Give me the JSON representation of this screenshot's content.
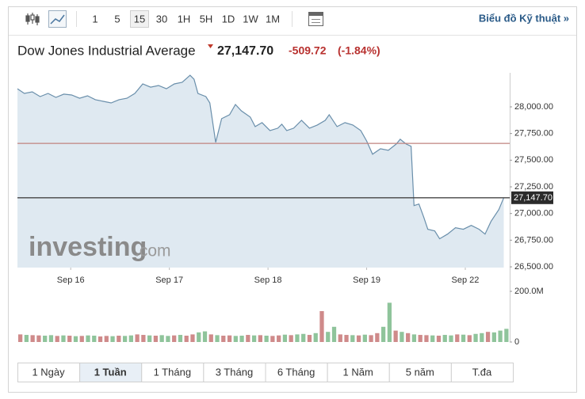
{
  "toolbar": {
    "intervals": [
      "1",
      "5",
      "15",
      "30",
      "1H",
      "5H",
      "1D",
      "1W",
      "1M"
    ],
    "selected": 2,
    "link": "Biểu đồ Kỹ thuật »"
  },
  "header": {
    "name": "Dow Jones Industrial Average",
    "price": "27,147.70",
    "change": "-509.72",
    "change_pct": "(-1.84%)"
  },
  "watermark": {
    "brand": "investing",
    "suffix": ".com"
  },
  "ranges": {
    "labels": [
      "1 Ngày",
      "1 Tuần",
      "1 Tháng",
      "3 Tháng",
      "6 Tháng",
      "1 Năm",
      "5 năm",
      "T.đa"
    ],
    "selected": 1
  },
  "chart_data": {
    "type": "line",
    "color": "#6a8fab",
    "area_color": "#dfe9f1",
    "x": [
      -0.54,
      -0.47,
      -0.39,
      -0.31,
      -0.23,
      -0.15,
      -0.07,
      0.01,
      0.09,
      0.17,
      0.25,
      0.33,
      0.41,
      0.49,
      0.57,
      0.65,
      0.73,
      0.81,
      0.89,
      0.97,
      1.05,
      1.13,
      1.21,
      1.25,
      1.29,
      1.37,
      1.41,
      1.47,
      1.53,
      1.61,
      1.67,
      1.73,
      1.82,
      1.87,
      1.94,
      2.02,
      2.1,
      2.14,
      2.19,
      2.26,
      2.34,
      2.42,
      2.5,
      2.58,
      2.62,
      2.7,
      2.78,
      2.86,
      2.94,
      3.0,
      3.06,
      3.14,
      3.22,
      3.3,
      3.34,
      3.4,
      3.45,
      3.48,
      3.53,
      3.58,
      3.62,
      3.69,
      3.74,
      3.82,
      3.9,
      3.98,
      4.06,
      4.14,
      4.2,
      4.26,
      4.34,
      4.39
    ],
    "values": [
      28170,
      28126,
      28141,
      28096,
      28126,
      28089,
      28119,
      28111,
      28081,
      28104,
      28067,
      28052,
      28037,
      28067,
      28081,
      28126,
      28215,
      28185,
      28200,
      28170,
      28215,
      28230,
      28296,
      28259,
      28126,
      28096,
      28037,
      27667,
      27889,
      27926,
      28022,
      27963,
      27904,
      27815,
      27852,
      27778,
      27800,
      27837,
      27778,
      27800,
      27874,
      27800,
      27830,
      27874,
      27926,
      27815,
      27852,
      27830,
      27778,
      27681,
      27556,
      27607,
      27593,
      27652,
      27696,
      27652,
      27630,
      27074,
      27089,
      26963,
      26852,
      26837,
      26763,
      26807,
      26867,
      26852,
      26889,
      26852,
      26807,
      26926,
      27037,
      27147.7
    ],
    "xlim": [
      -0.54,
      4.45
    ],
    "xticks": [
      {
        "value": 0,
        "label": "Sep 16"
      },
      {
        "value": 1,
        "label": "Sep 17"
      },
      {
        "value": 2,
        "label": "Sep 18"
      },
      {
        "value": 3,
        "label": "Sep 19"
      },
      {
        "value": 4,
        "label": "Sep 22"
      }
    ],
    "ylim": [
      26493,
      28319
    ],
    "yticks": [
      {
        "value": 28000,
        "label": "28,000.00"
      },
      {
        "value": 27750,
        "label": "27,750.00"
      },
      {
        "value": 27500,
        "label": "27,500.00"
      },
      {
        "value": 27250,
        "label": "27,250.00"
      },
      {
        "value": 27000,
        "label": "27,000.00"
      },
      {
        "value": 26750,
        "label": "26,750.00"
      },
      {
        "value": 26500,
        "label": "26,500.00"
      }
    ],
    "prev_close": {
      "value": 27657.42,
      "color": "#c0837f"
    },
    "last": {
      "value": 27147.7,
      "label": "27,147.70",
      "color": "#444"
    },
    "volume": {
      "values": [
        30000000,
        28000000,
        27000000,
        26000000,
        25000000,
        27000000,
        24000000,
        26000000,
        25000000,
        23000000,
        24000000,
        26000000,
        25000000,
        22000000,
        24000000,
        23000000,
        25000000,
        24000000,
        26000000,
        30000000,
        28000000,
        26000000,
        25000000,
        27000000,
        24000000,
        26000000,
        28000000,
        25000000,
        30000000,
        38000000,
        42000000,
        30000000,
        27000000,
        25000000,
        26000000,
        24000000,
        25000000,
        28000000,
        26000000,
        27000000,
        25000000,
        24000000,
        26000000,
        29000000,
        27000000,
        30000000,
        32000000,
        28000000,
        35000000,
        122000000,
        40000000,
        60000000,
        30000000,
        28000000,
        27000000,
        26000000,
        29000000,
        27000000,
        35000000,
        60000000,
        155000000,
        45000000,
        40000000,
        35000000,
        30000000,
        28000000,
        27000000,
        26000000,
        25000000,
        28000000,
        26000000,
        30000000,
        29000000,
        27000000,
        32000000,
        35000000,
        40000000,
        38000000,
        45000000,
        52000000
      ],
      "bar_colors": [
        "#cf8a8a",
        "#8fc49b",
        "#cf8a8a",
        "#cf8a8a",
        "#8fc49b",
        "#8fc49b",
        "#cf8a8a",
        "#8fc49b",
        "#cf8a8a",
        "#8fc49b",
        "#cf8a8a",
        "#8fc49b",
        "#8fc49b",
        "#cf8a8a",
        "#cf8a8a",
        "#8fc49b",
        "#cf8a8a",
        "#8fc49b",
        "#8fc49b",
        "#cf8a8a",
        "#cf8a8a",
        "#8fc49b",
        "#cf8a8a",
        "#8fc49b",
        "#8fc49b",
        "#cf8a8a",
        "#8fc49b",
        "#cf8a8a",
        "#cf8a8a",
        "#8fc49b",
        "#8fc49b",
        "#cf8a8a",
        "#8fc49b",
        "#cf8a8a",
        "#cf8a8a",
        "#8fc49b",
        "#8fc49b",
        "#cf8a8a",
        "#8fc49b",
        "#cf8a8a",
        "#8fc49b",
        "#cf8a8a",
        "#cf8a8a",
        "#8fc49b",
        "#cf8a8a",
        "#8fc49b",
        "#8fc49b",
        "#cf8a8a",
        "#8fc49b",
        "#cf8a8a",
        "#8fc49b",
        "#8fc49b",
        "#cf8a8a",
        "#cf8a8a",
        "#8fc49b",
        "#cf8a8a",
        "#8fc49b",
        "#cf8a8a",
        "#cf8a8a",
        "#8fc49b",
        "#8fc49b",
        "#cf8a8a",
        "#8fc49b",
        "#cf8a8a",
        "#8fc49b",
        "#cf8a8a",
        "#cf8a8a",
        "#8fc49b",
        "#cf8a8a",
        "#8fc49b",
        "#8fc49b",
        "#cf8a8a",
        "#8fc49b",
        "#cf8a8a",
        "#8fc49b",
        "#8fc49b",
        "#cf8a8a",
        "#8fc49b",
        "#8fc49b",
        "#8fc49b"
      ],
      "ylim": [
        0,
        200000000
      ],
      "yticks": [
        {
          "value": 200000000,
          "label": "200.0M"
        },
        0
      ]
    }
  }
}
